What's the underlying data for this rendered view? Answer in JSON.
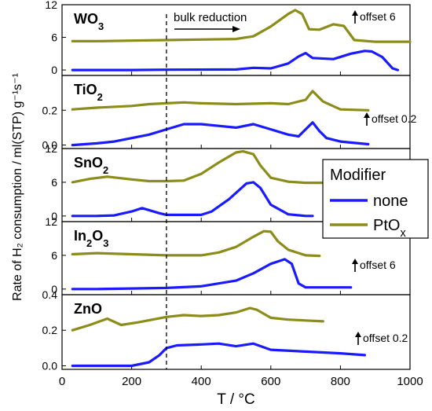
{
  "chart_data": {
    "type": "line",
    "xlabel": "T / °C",
    "x_ticks": [
      "0",
      "200",
      "400",
      "600",
      "800",
      "1000"
    ],
    "xlim": [
      0,
      1000
    ],
    "ylabel": "Rate of H₂ consumption / ml(STP) g⁻¹s⁻¹",
    "vertical_marker": {
      "x": 300,
      "style": "dashed"
    },
    "annotation_bulk": "bulk reduction",
    "legend": {
      "title": "Modifier",
      "entries": [
        {
          "label": "none",
          "color": "#1a1aff"
        },
        {
          "label": "PtOx",
          "color": "#8c8c1a"
        }
      ]
    },
    "panels": [
      {
        "title": "WO3",
        "ylim": [
          -1,
          12
        ],
        "y_ticks": [
          "0",
          "6",
          "12"
        ],
        "offset_note": "offset 6",
        "series": [
          {
            "name": "PtOx",
            "x": [
              30,
              100,
              200,
              300,
              400,
              500,
              550,
              600,
              650,
              670,
              690,
              710,
              740,
              780,
              810,
              840,
              900,
              1000
            ],
            "y": [
              5.3,
              5.3,
              5.4,
              5.5,
              5.6,
              5.7,
              6.2,
              8,
              10.3,
              11,
              10.3,
              7.5,
              7.4,
              8.4,
              8.1,
              5.5,
              5.2,
              5.2
            ]
          },
          {
            "name": "none",
            "x": [
              30,
              200,
              300,
              500,
              550,
              600,
              650,
              680,
              700,
              720,
              780,
              830,
              870,
              890,
              920,
              950,
              965
            ],
            "y": [
              0,
              0,
              0.05,
              0.1,
              0.4,
              0.3,
              1.2,
              2.5,
              3.1,
              2.2,
              2,
              3,
              3.5,
              3.4,
              2.4,
              0.3,
              0
            ]
          }
        ]
      },
      {
        "title": "TiO2",
        "ylim": [
          -0.02,
          0.4
        ],
        "y_ticks": [
          "0.0",
          "0.2"
        ],
        "offset_note": "offset 0.2",
        "series": [
          {
            "name": "PtOx",
            "x": [
              30,
              100,
              200,
              250,
              300,
              350,
              400,
              500,
              600,
              650,
              700,
              720,
              750,
              800,
              880
            ],
            "y": [
              0.205,
              0.215,
              0.225,
              0.235,
              0.24,
              0.245,
              0.24,
              0.235,
              0.24,
              0.235,
              0.26,
              0.31,
              0.25,
              0.205,
              0.2
            ]
          },
          {
            "name": "none",
            "x": [
              30,
              100,
              150,
              200,
              250,
              300,
              350,
              400,
              450,
              500,
              550,
              600,
              650,
              680,
              700,
              720,
              740,
              760,
              800,
              880
            ],
            "y": [
              0,
              0.01,
              0.02,
              0.04,
              0.06,
              0.09,
              0.12,
              0.12,
              0.11,
              0.1,
              0.12,
              0.09,
              0.06,
              0.05,
              0.09,
              0.13,
              0.08,
              0.04,
              0.02,
              0.005
            ]
          }
        ]
      },
      {
        "title": "SnO2",
        "ylim": [
          -1,
          12
        ],
        "y_ticks": [
          "0",
          "6",
          "12"
        ],
        "series": [
          {
            "name": "PtOx",
            "x": [
              30,
              80,
              130,
              200,
              250,
              300,
              350,
              400,
              450,
              500,
              520,
              550,
              570,
              600,
              650,
              700,
              750
            ],
            "y": [
              6,
              6.6,
              7,
              6.5,
              6.2,
              6.2,
              6.3,
              7.5,
              9.5,
              11.3,
              11.5,
              11,
              9,
              6.8,
              6.1,
              5.9,
              5.9
            ]
          },
          {
            "name": "none",
            "x": [
              30,
              100,
              150,
              200,
              230,
              280,
              300,
              400,
              430,
              480,
              530,
              550,
              570,
              600,
              650,
              700,
              720
            ],
            "y": [
              0,
              0,
              0.1,
              0.8,
              1.4,
              0.5,
              0.2,
              0.2,
              0.8,
              3,
              5.8,
              6,
              5,
              2,
              0.3,
              0,
              0
            ]
          }
        ]
      },
      {
        "title": "In2O3",
        "ylim": [
          -1,
          12
        ],
        "y_ticks": [
          "0",
          "6",
          "12"
        ],
        "offset_note": "offset 6",
        "series": [
          {
            "name": "PtOx",
            "x": [
              30,
              100,
              200,
              300,
              400,
              450,
              500,
              550,
              580,
              600,
              620,
              650,
              700,
              740
            ],
            "y": [
              6.2,
              6.4,
              6.2,
              6,
              6,
              6.5,
              7.5,
              9.3,
              10.3,
              10.2,
              8.5,
              7,
              6,
              5.9
            ]
          },
          {
            "name": "none",
            "x": [
              30,
              100,
              200,
              300,
              400,
              500,
              550,
              600,
              640,
              660,
              680,
              700,
              830
            ],
            "y": [
              0,
              0,
              0.1,
              0.2,
              0.5,
              1.5,
              2.8,
              4.5,
              5.3,
              4.5,
              1,
              0.3,
              0.3
            ]
          }
        ]
      },
      {
        "title": "ZnO",
        "ylim": [
          -0.02,
          0.4
        ],
        "y_ticks": [
          "0.0",
          "0.2",
          "0.4"
        ],
        "offset_note": "offset 0.2",
        "series": [
          {
            "name": "PtOx",
            "x": [
              30,
              80,
              130,
              170,
              220,
              300,
              350,
              400,
              450,
              500,
              540,
              560,
              600,
              650,
              700,
              750
            ],
            "y": [
              0.2,
              0.23,
              0.265,
              0.23,
              0.245,
              0.275,
              0.285,
              0.28,
              0.285,
              0.3,
              0.325,
              0.315,
              0.27,
              0.26,
              0.255,
              0.25
            ]
          },
          {
            "name": "none",
            "x": [
              30,
              200,
              250,
              280,
              300,
              330,
              400,
              450,
              500,
              550,
              600,
              700,
              800,
              870
            ],
            "y": [
              0,
              0,
              0.02,
              0.06,
              0.1,
              0.115,
              0.12,
              0.125,
              0.11,
              0.125,
              0.09,
              0.08,
              0.07,
              0.06
            ]
          }
        ]
      }
    ]
  }
}
